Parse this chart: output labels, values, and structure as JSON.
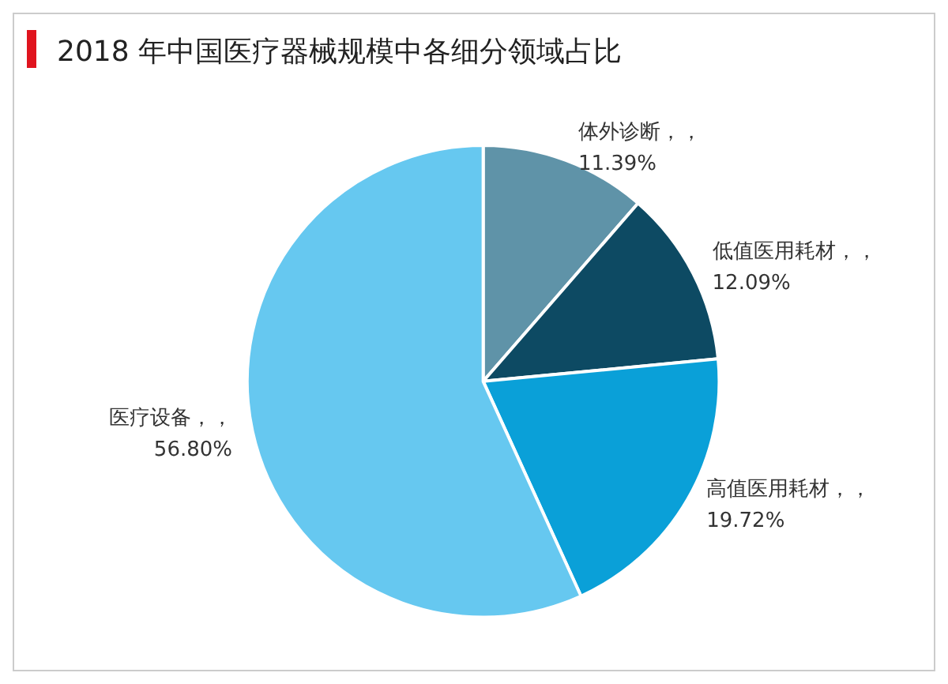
{
  "chart_data": {
    "type": "pie",
    "title": "2018 年中国医疗器械规模中各细分领域占比",
    "categories": [
      "体外诊断",
      "低值医用耗材",
      "高值医用耗材",
      "医疗设备"
    ],
    "values": [
      11.39,
      12.09,
      19.72,
      56.8
    ],
    "value_labels": [
      "，，\n11.39%",
      "，，\n12.09%",
      "，，\n19.72%",
      "，，\n56.80%"
    ],
    "colors": [
      "#5f93a8",
      "#0d4a63",
      "#0aa0d8",
      "#66c8f0"
    ],
    "legend": false
  }
}
